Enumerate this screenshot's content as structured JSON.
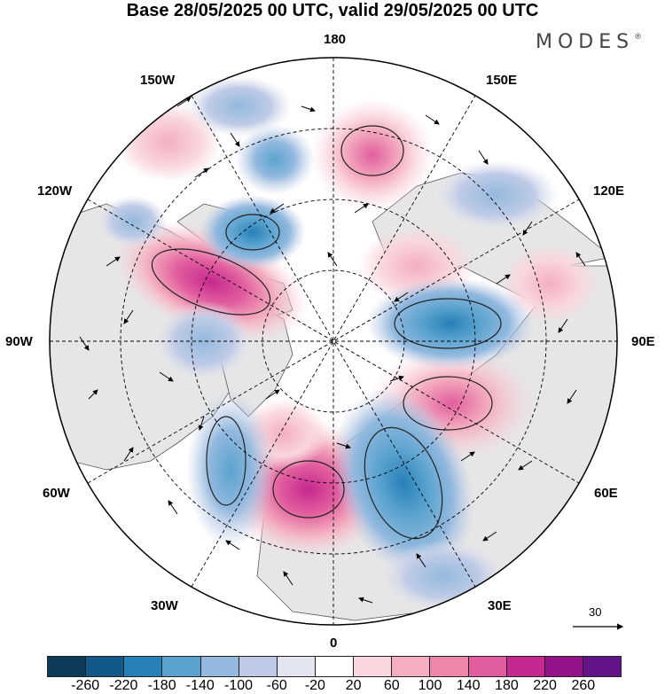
{
  "title": "Base 28/05/2025 00 UTC, valid 29/05/2025 00 UTC",
  "brand": "MODES",
  "brand_mark": "®",
  "longitude_labels": {
    "lon_180": "180",
    "lon_150w": "150W",
    "lon_150e": "150E",
    "lon_120w": "120W",
    "lon_120e": "120E",
    "lon_90w": "90W",
    "lon_90e": "90E",
    "lon_60w": "60W",
    "lon_60e": "60E",
    "lon_30w": "30W",
    "lon_30e": "30E",
    "lon_0": "0"
  },
  "reference_vector": "30",
  "colorbar": {
    "colors": [
      "#0b3a5a",
      "#10598a",
      "#2780b8",
      "#5aa3cf",
      "#93b9de",
      "#bfcbe6",
      "#e3e4f2",
      "#ffffff",
      "#f9d6dc",
      "#f4aec0",
      "#ee86ab",
      "#e15e9e",
      "#c5288f",
      "#94118a",
      "#601488"
    ],
    "labels": [
      "-260",
      "-220",
      "-180",
      "-140",
      "-100",
      "-60",
      "-20",
      "20",
      "60",
      "100",
      "140",
      "180",
      "220",
      "260"
    ]
  },
  "colors": {
    "ocean": "#ffffff",
    "land": "#e6e6e6",
    "coast": "#444444"
  }
}
